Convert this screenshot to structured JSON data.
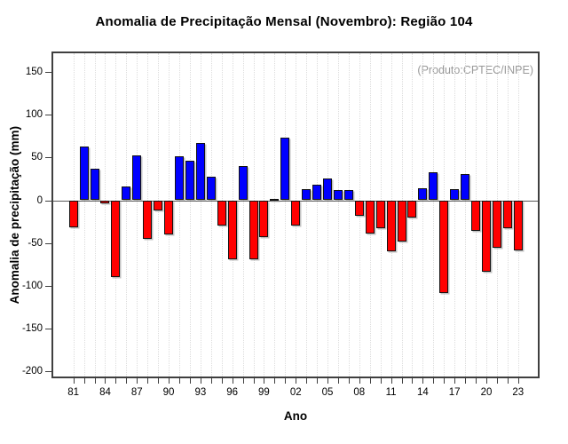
{
  "chart_data": {
    "type": "bar",
    "title": "Anomalia de Precipitação Mensal (Novembro): Região 104",
    "annotation": "(Produto:CPTEC/INPE)",
    "xlabel": "Ano",
    "ylabel": "Anomalia de precipitação (mm)",
    "years": [
      1981,
      1982,
      1983,
      1984,
      1985,
      1986,
      1987,
      1988,
      1989,
      1990,
      1991,
      1992,
      1993,
      1994,
      1995,
      1996,
      1997,
      1998,
      1999,
      2000,
      2001,
      2002,
      2003,
      2004,
      2005,
      2006,
      2007,
      2008,
      2009,
      2010,
      2011,
      2012,
      2013,
      2014,
      2015,
      2016,
      2017,
      2018,
      2019,
      2020,
      2021,
      2022,
      2023
    ],
    "values": [
      -32,
      63,
      37,
      -4,
      -90,
      16,
      53,
      -45,
      -12,
      -40,
      51,
      46,
      67,
      28,
      -30,
      -69,
      40,
      -69,
      -43,
      2,
      73,
      -30,
      13,
      18,
      25,
      12,
      12,
      -18,
      -39,
      -33,
      -60,
      -48,
      -20,
      14,
      33,
      -109,
      13,
      31,
      -36,
      -84,
      -56,
      -33,
      -59
    ],
    "positive_color": "#0000FF",
    "negative_color": "#FF0000",
    "bar_border_color": "#121212",
    "yticks": [
      150,
      100,
      50,
      0,
      -50,
      -100,
      -150,
      -200
    ],
    "xtick_labels": [
      "81",
      "84",
      "87",
      "90",
      "93",
      "96",
      "99",
      "02",
      "05",
      "08",
      "11",
      "14",
      "17",
      "20",
      "23"
    ],
    "xtick_year_step": 3,
    "ylim": [
      -209,
      174
    ],
    "grid": "vertical-dotted",
    "legend": "none"
  }
}
